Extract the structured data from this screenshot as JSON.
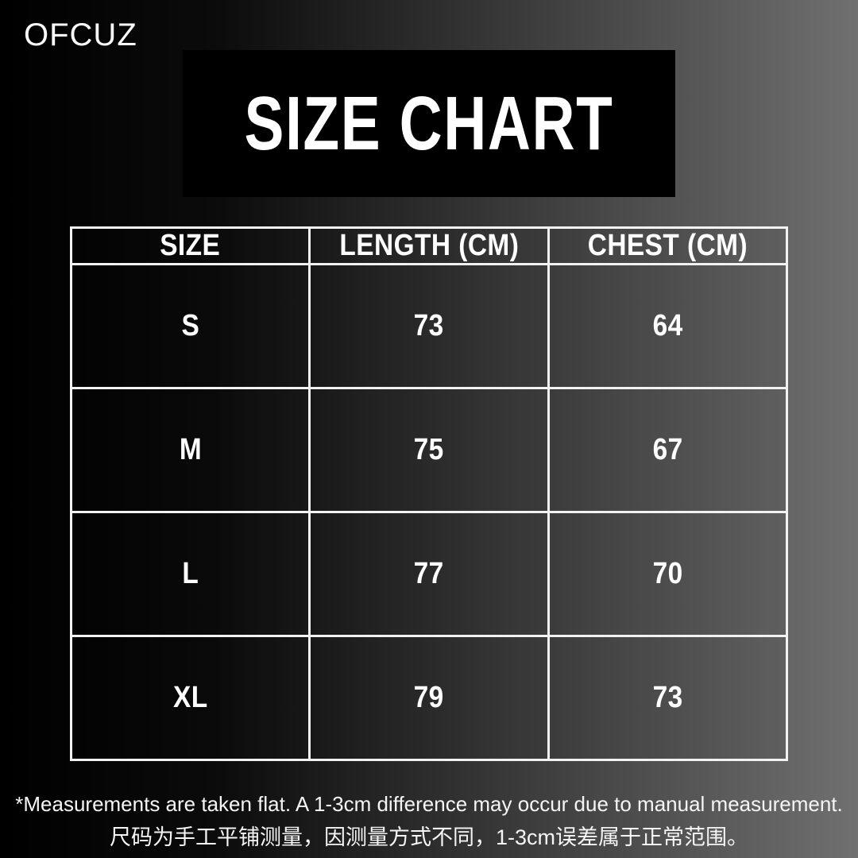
{
  "brand": "OFCUZ",
  "title": "SIZE CHART",
  "table": {
    "headers": [
      "SIZE",
      "LENGTH (CM)",
      "CHEST (CM)"
    ],
    "rows": [
      {
        "size": "S",
        "length": "73",
        "chest": "64"
      },
      {
        "size": "M",
        "length": "75",
        "chest": "67"
      },
      {
        "size": "L",
        "length": "77",
        "chest": "70"
      },
      {
        "size": "XL",
        "length": "79",
        "chest": "73"
      }
    ]
  },
  "footnotes": {
    "en": "*Measurements are taken flat. A 1-3cm difference may occur due to manual measurement.",
    "zh": "尺码为手工平铺测量，因测量方式不同，1-3cm误差属于正常范围。"
  },
  "colors": {
    "background_left": "#000000",
    "background_right": "#707070",
    "title_box_background": "#000000",
    "text": "#ffffff",
    "table_border": "#f2f2f2"
  }
}
